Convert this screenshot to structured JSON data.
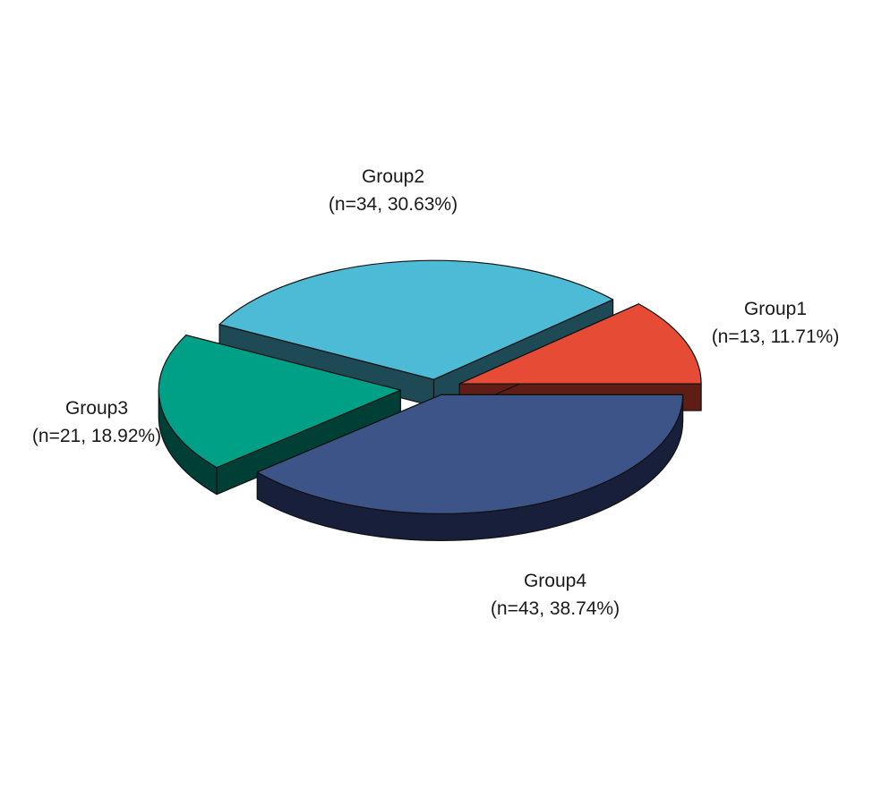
{
  "chart_data": {
    "type": "pie",
    "style": "3d-exploded",
    "title": "",
    "slices": [
      {
        "name": "Group1",
        "value": 13,
        "percent": 11.71,
        "label": "(n=13, 11.71%)",
        "color": "#E64B35",
        "side_color": "#5E1D15"
      },
      {
        "name": "Group2",
        "value": 34,
        "percent": 30.63,
        "label": "(n=34, 30.63%)",
        "color": "#4DBBD5",
        "side_color": "#1E4A55"
      },
      {
        "name": "Group3",
        "value": 21,
        "percent": 18.92,
        "label": "(n=21, 18.92%)",
        "color": "#00A087",
        "side_color": "#003F35"
      },
      {
        "name": "Group4",
        "value": 43,
        "percent": 38.74,
        "label": "(n=43, 38.74%)",
        "color": "#3C5488",
        "side_color": "#181F3A"
      }
    ],
    "legend": "none"
  }
}
